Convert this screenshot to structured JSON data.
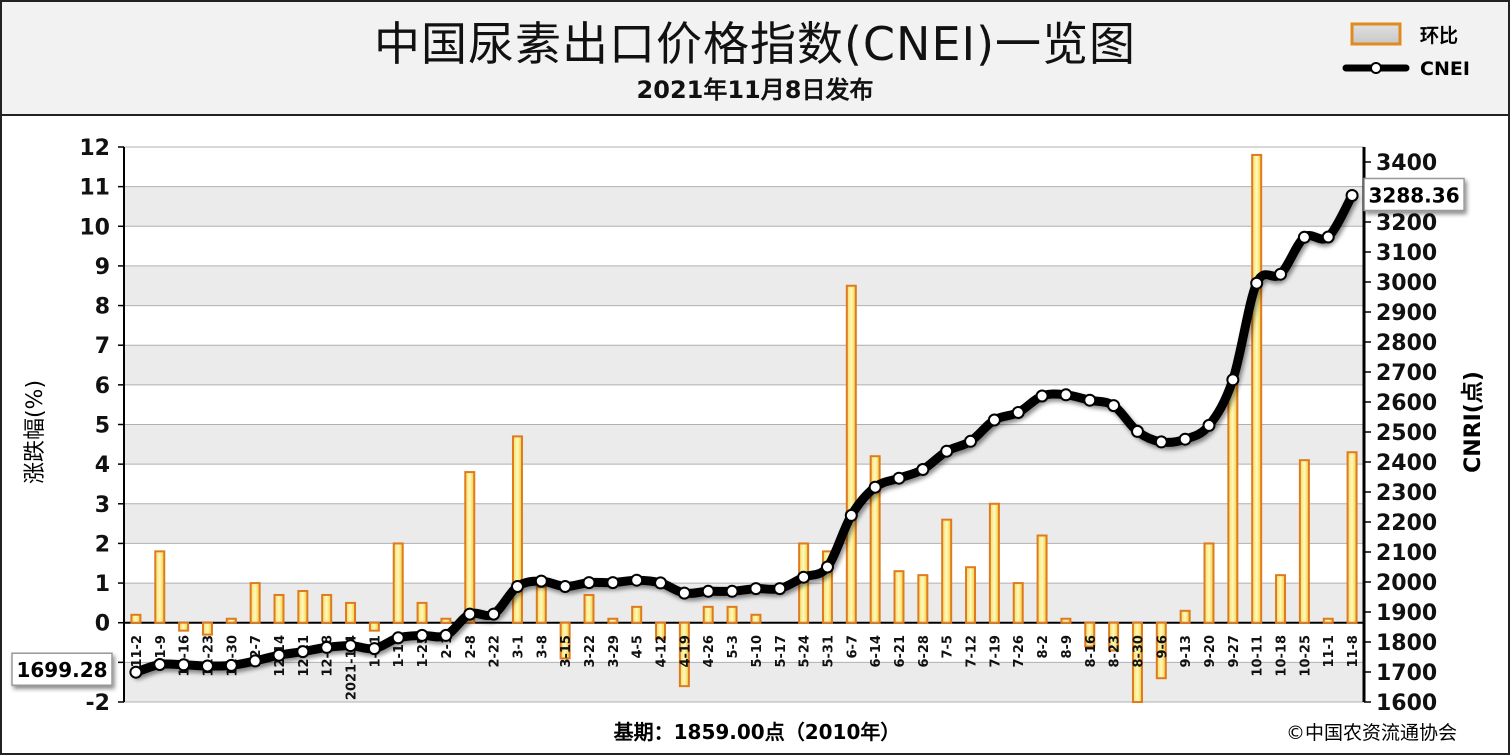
{
  "header": {
    "title": "中国尿素出口价格指数(CNEI)一览图",
    "subtitle": "2021年11月8日发布"
  },
  "legend": {
    "bar_label": "环比",
    "line_label": "CNEI"
  },
  "footer": {
    "base_note": "基期：1859.00点（2010年）",
    "copyright": "©中国农资流通协会"
  },
  "chart_data": {
    "type": "bar+line",
    "left_axis": {
      "label": "涨跌幅(%)",
      "min": -2,
      "max": 12,
      "ticks": [
        -2,
        -1,
        0,
        1,
        2,
        3,
        4,
        5,
        6,
        7,
        8,
        9,
        10,
        11,
        12
      ]
    },
    "right_axis": {
      "label": "CNRI(点)",
      "min": 1600,
      "max": 3450,
      "ticks": [
        1600,
        1700,
        1800,
        1900,
        2000,
        2100,
        2200,
        2300,
        2400,
        2500,
        2600,
        2700,
        2800,
        2900,
        3000,
        3100,
        3200,
        3300,
        3400
      ]
    },
    "grid": true,
    "categories": [
      "11-2",
      "11-9",
      "11-16",
      "11-23",
      "11-30",
      "12-7",
      "12-14",
      "12-21",
      "12-28",
      "2021-1-4",
      "1-11",
      "1-18",
      "1-25",
      "2-1",
      "2-8",
      "2-22",
      "3-1",
      "3-8",
      "3-15",
      "3-22",
      "3-29",
      "4-5",
      "4-12",
      "4-19",
      "4-26",
      "5-3",
      "5-10",
      "5-17",
      "5-24",
      "5-31",
      "6-7",
      "6-14",
      "6-21",
      "6-28",
      "7-5",
      "7-12",
      "7-19",
      "7-26",
      "8-2",
      "8-9",
      "8-16",
      "8-23",
      "8-30",
      "9-6",
      "9-13",
      "9-20",
      "9-27",
      "10-11",
      "10-18",
      "10-25",
      "11-1",
      "11-8"
    ],
    "series": [
      {
        "name": "环比",
        "type": "bar",
        "axis": "left",
        "values": [
          0.2,
          1.8,
          -0.2,
          -0.3,
          0.1,
          1.0,
          0.7,
          0.8,
          0.7,
          0.5,
          -0.2,
          2.0,
          0.5,
          0.1,
          3.8,
          0,
          4.7,
          0.9,
          -0.9,
          0.7,
          0.1,
          0.4,
          -0.4,
          -1.6,
          0.4,
          0.4,
          0.2,
          0.0,
          2.0,
          1.8,
          8.5,
          4.2,
          1.3,
          1.2,
          2.6,
          1.4,
          3.0,
          1.0,
          2.2,
          0.1,
          -0.6,
          -0.7,
          -2.0,
          -1.4,
          0.3,
          2.0,
          6.0,
          11.8,
          1.2,
          4.1,
          0.1,
          4.3
        ]
      },
      {
        "name": "CNEI",
        "type": "line",
        "axis": "right",
        "values": [
          1699.28,
          1725,
          1724,
          1720,
          1722,
          1737,
          1756,
          1768,
          1782,
          1788,
          1778,
          1814,
          1822,
          1822,
          1893,
          1893,
          1985,
          2003,
          1985,
          1998,
          1998,
          2006,
          1997,
          1963,
          1969,
          1969,
          1978,
          1978,
          2016,
          2050,
          2222,
          2316,
          2346,
          2375,
          2436,
          2469,
          2540,
          2565,
          2620,
          2624,
          2606,
          2588,
          2502,
          2467,
          2476,
          2522,
          2674,
          2996,
          3026,
          3149,
          3150,
          3288.36
        ]
      }
    ],
    "first_value_label": "1699.28",
    "last_value_label": "3288.36"
  }
}
